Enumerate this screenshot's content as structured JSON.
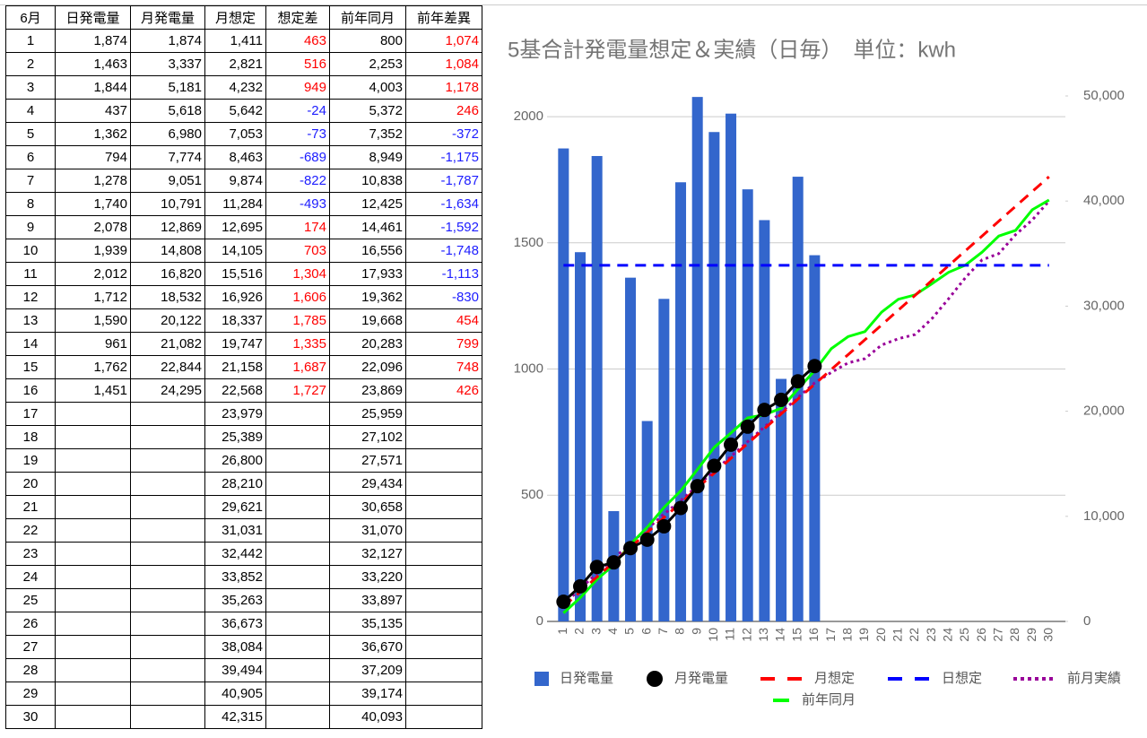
{
  "table": {
    "header": [
      "6月",
      "日発電量",
      "月発電量",
      "月想定",
      "想定差",
      "前年同月",
      "前年差異"
    ],
    "rows": [
      [
        "1",
        "1,874",
        "1,874",
        "1,411",
        "463",
        "800",
        "1,074"
      ],
      [
        "2",
        "1,463",
        "3,337",
        "2,821",
        "516",
        "2,253",
        "1,084"
      ],
      [
        "3",
        "1,844",
        "5,181",
        "4,232",
        "949",
        "4,003",
        "1,178"
      ],
      [
        "4",
        "437",
        "5,618",
        "5,642",
        "-24",
        "5,372",
        "246"
      ],
      [
        "5",
        "1,362",
        "6,980",
        "7,053",
        "-73",
        "7,352",
        "-372"
      ],
      [
        "6",
        "794",
        "7,774",
        "8,463",
        "-689",
        "8,949",
        "-1,175"
      ],
      [
        "7",
        "1,278",
        "9,051",
        "9,874",
        "-822",
        "10,838",
        "-1,787"
      ],
      [
        "8",
        "1,740",
        "10,791",
        "11,284",
        "-493",
        "12,425",
        "-1,634"
      ],
      [
        "9",
        "2,078",
        "12,869",
        "12,695",
        "174",
        "14,461",
        "-1,592"
      ],
      [
        "10",
        "1,939",
        "14,808",
        "14,105",
        "703",
        "16,556",
        "-1,748"
      ],
      [
        "11",
        "2,012",
        "16,820",
        "15,516",
        "1,304",
        "17,933",
        "-1,113"
      ],
      [
        "12",
        "1,712",
        "18,532",
        "16,926",
        "1,606",
        "19,362",
        "-830"
      ],
      [
        "13",
        "1,590",
        "20,122",
        "18,337",
        "1,785",
        "19,668",
        "454"
      ],
      [
        "14",
        "961",
        "21,082",
        "19,747",
        "1,335",
        "20,283",
        "799"
      ],
      [
        "15",
        "1,762",
        "22,844",
        "21,158",
        "1,687",
        "22,096",
        "748"
      ],
      [
        "16",
        "1,451",
        "24,295",
        "22,568",
        "1,727",
        "23,869",
        "426"
      ],
      [
        "17",
        null,
        null,
        "23,979",
        null,
        "25,959",
        null
      ],
      [
        "18",
        null,
        null,
        "25,389",
        null,
        "27,102",
        null
      ],
      [
        "19",
        null,
        null,
        "26,800",
        null,
        "27,571",
        null
      ],
      [
        "20",
        null,
        null,
        "28,210",
        null,
        "29,434",
        null
      ],
      [
        "21",
        null,
        null,
        "29,621",
        null,
        "30,658",
        null
      ],
      [
        "22",
        null,
        null,
        "31,031",
        null,
        "31,070",
        null
      ],
      [
        "23",
        null,
        null,
        "32,442",
        null,
        "32,127",
        null
      ],
      [
        "24",
        null,
        null,
        "33,852",
        null,
        "33,220",
        null
      ],
      [
        "25",
        null,
        null,
        "35,263",
        null,
        "33,897",
        null
      ],
      [
        "26",
        null,
        null,
        "36,673",
        null,
        "35,135",
        null
      ],
      [
        "27",
        null,
        null,
        "38,084",
        null,
        "36,670",
        null
      ],
      [
        "28",
        null,
        null,
        "39,494",
        null,
        "37,209",
        null
      ],
      [
        "29",
        null,
        null,
        "40,905",
        null,
        "39,174",
        null
      ],
      [
        "30",
        null,
        null,
        "42,315",
        null,
        "40,093",
        null
      ]
    ]
  },
  "chart_data": {
    "type": "combo",
    "title": "5基合計発電量想定＆実績（日毎）　単位：kwh",
    "categories": [
      "1",
      "2",
      "3",
      "4",
      "5",
      "6",
      "7",
      "8",
      "9",
      "10",
      "11",
      "12",
      "13",
      "14",
      "15",
      "16",
      "17",
      "18",
      "19",
      "20",
      "21",
      "22",
      "23",
      "24",
      "25",
      "26",
      "27",
      "28",
      "29",
      "30"
    ],
    "ylim": [
      0,
      2082
    ],
    "yticks": [
      0,
      500,
      1000,
      1500,
      2000
    ],
    "y2lim": [
      0,
      50000
    ],
    "y2ticks": [
      0,
      {
        "value": 10000,
        "label": "10,000"
      },
      {
        "value": 20000,
        "label": "20,000"
      },
      {
        "value": 30000,
        "label": "30,000"
      },
      {
        "value": 40000,
        "label": "40,000"
      },
      {
        "value": 50000,
        "label": "50,000"
      }
    ],
    "grid": true,
    "series": [
      {
        "name": "日発電量",
        "kind": "bar",
        "color": "#3366cc",
        "values": [
          1874,
          1463,
          1844,
          437,
          1362,
          794,
          1278,
          1740,
          2078,
          1939,
          2012,
          1712,
          1590,
          961,
          1762,
          1451,
          null,
          null,
          null,
          null,
          null,
          null,
          null,
          null,
          null,
          null,
          null,
          null,
          null,
          null
        ]
      },
      {
        "name": "月発電量",
        "kind": "dots",
        "color": "#000000",
        "axis": "y2",
        "values": [
          1874,
          3337,
          5181,
          5618,
          6980,
          7774,
          9051,
          10791,
          12869,
          14808,
          16820,
          18532,
          20122,
          21082,
          22844,
          24295,
          null,
          null,
          null,
          null,
          null,
          null,
          null,
          null,
          null,
          null,
          null,
          null,
          null,
          null
        ]
      },
      {
        "name": "月想定",
        "kind": "dash",
        "color": "#ff0000",
        "axis": "y2",
        "values": [
          1411,
          2821,
          4232,
          5642,
          7053,
          8463,
          9874,
          11284,
          12695,
          14105,
          15516,
          16926,
          18337,
          19747,
          21158,
          22568,
          23979,
          25389,
          26800,
          28210,
          29621,
          31031,
          32442,
          33852,
          35263,
          36673,
          38084,
          39494,
          40905,
          42315
        ]
      },
      {
        "name": "日想定",
        "kind": "dash",
        "color": "#0000ff",
        "values": [
          1411,
          1411,
          1411,
          1411,
          1411,
          1411,
          1411,
          1411,
          1411,
          1411,
          1411,
          1411,
          1411,
          1411,
          1411,
          1411,
          1411,
          1411,
          1411,
          1411,
          1411,
          1411,
          1411,
          1411,
          1411,
          1411,
          1411,
          1411,
          1411,
          1411
        ]
      },
      {
        "name": "前月実績",
        "kind": "dot",
        "color": "#990099",
        "axis": "y2",
        "values": [
          1600,
          3100,
          4600,
          6000,
          7400,
          8800,
          10200,
          11500,
          12900,
          14300,
          15700,
          17100,
          18500,
          19900,
          21300,
          22700,
          23700,
          24600,
          25000,
          26300,
          26900,
          27300,
          28800,
          30700,
          32700,
          34400,
          35000,
          36800,
          38200,
          40000
        ]
      },
      {
        "name": "前年同月",
        "kind": "line",
        "color": "#00ff00",
        "axis": "y2",
        "values": [
          800,
          2253,
          4003,
          5372,
          7352,
          8949,
          10838,
          12425,
          14461,
          16556,
          17933,
          19362,
          19668,
          20283,
          22096,
          23869,
          25959,
          27102,
          27571,
          29434,
          30658,
          31070,
          32127,
          33220,
          33897,
          35135,
          36670,
          37209,
          39174,
          40093
        ]
      }
    ]
  }
}
